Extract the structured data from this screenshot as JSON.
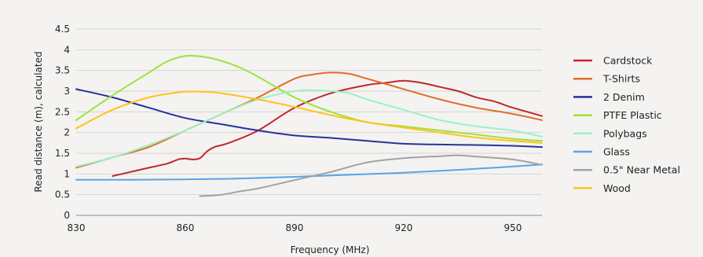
{
  "chart_data": {
    "type": "line",
    "title": "",
    "xlabel": "Frequency (MHz)",
    "ylabel": "Read distance (m), calculated",
    "xlim": [
      830,
      958
    ],
    "ylim": [
      0,
      4.5
    ],
    "x_ticks": [
      "830",
      "860",
      "890",
      "920",
      "950"
    ],
    "y_ticks": [
      "0",
      "0.5",
      "1",
      "1.5",
      "2",
      "2.5",
      "3",
      "3.5",
      "4",
      "4.5"
    ],
    "grid": true,
    "legend": "right",
    "series": [
      {
        "name": "Cardstock",
        "color": "#c0272d",
        "x": [
          840,
          845,
          850,
          855,
          858,
          860,
          862,
          864,
          866,
          868,
          872,
          880,
          890,
          900,
          910,
          915,
          920,
          925,
          930,
          935,
          940,
          945,
          950,
          958
        ],
        "y": [
          0.95,
          1.05,
          1.15,
          1.25,
          1.35,
          1.37,
          1.35,
          1.38,
          1.55,
          1.65,
          1.75,
          2.05,
          2.6,
          2.95,
          3.15,
          3.2,
          3.25,
          3.2,
          3.1,
          3.0,
          2.85,
          2.75,
          2.6,
          2.4
        ]
      },
      {
        "name": "T-Shirts",
        "color": "#e06c2a",
        "x": [
          830,
          840,
          850,
          860,
          870,
          880,
          890,
          895,
          900,
          905,
          910,
          920,
          930,
          940,
          950,
          958
        ],
        "y": [
          1.15,
          1.4,
          1.65,
          2.05,
          2.45,
          2.85,
          3.3,
          3.4,
          3.45,
          3.42,
          3.3,
          3.05,
          2.8,
          2.6,
          2.45,
          2.3
        ]
      },
      {
        "name": "2 Denim",
        "color": "#26339c",
        "x": [
          830,
          840,
          850,
          860,
          870,
          880,
          890,
          900,
          910,
          920,
          930,
          940,
          950,
          958
        ],
        "y": [
          3.05,
          2.85,
          2.6,
          2.35,
          2.2,
          2.05,
          1.93,
          1.87,
          1.8,
          1.73,
          1.71,
          1.7,
          1.68,
          1.65
        ]
      },
      {
        "name": "PTFE Plastic",
        "color": "#9ee23a",
        "x": [
          830,
          840,
          850,
          855,
          860,
          865,
          870,
          875,
          880,
          890,
          900,
          910,
          920,
          930,
          940,
          950,
          958
        ],
        "y": [
          2.3,
          2.9,
          3.45,
          3.72,
          3.85,
          3.83,
          3.73,
          3.57,
          3.35,
          2.85,
          2.5,
          2.25,
          2.15,
          2.05,
          1.95,
          1.85,
          1.8
        ]
      },
      {
        "name": "Polybags",
        "color": "#9df0c6",
        "x": [
          830,
          840,
          850,
          860,
          870,
          880,
          890,
          895,
          900,
          905,
          910,
          920,
          930,
          940,
          950,
          958
        ],
        "y": [
          1.18,
          1.4,
          1.7,
          2.05,
          2.45,
          2.8,
          3.0,
          3.02,
          3.0,
          2.95,
          2.8,
          2.55,
          2.3,
          2.15,
          2.05,
          1.9
        ]
      },
      {
        "name": "Glass",
        "color": "#5aa4e4",
        "x": [
          830,
          845,
          860,
          875,
          890,
          905,
          920,
          935,
          950,
          958
        ],
        "y": [
          0.86,
          0.86,
          0.87,
          0.89,
          0.93,
          0.98,
          1.03,
          1.1,
          1.18,
          1.23
        ]
      },
      {
        "name": "0.5\" Near Metal",
        "color": "#a3a3a3",
        "x": [
          864,
          870,
          875,
          880,
          890,
          900,
          910,
          920,
          930,
          935,
          940,
          950,
          958
        ],
        "y": [
          0.46,
          0.5,
          0.58,
          0.65,
          0.85,
          1.05,
          1.28,
          1.38,
          1.43,
          1.45,
          1.42,
          1.35,
          1.22
        ]
      },
      {
        "name": "Wood",
        "color": "#ffc31c",
        "x": [
          830,
          840,
          850,
          858,
          862,
          866,
          870,
          880,
          890,
          900,
          910,
          920,
          930,
          940,
          950,
          958
        ],
        "y": [
          2.1,
          2.55,
          2.85,
          2.97,
          2.99,
          2.98,
          2.95,
          2.8,
          2.62,
          2.42,
          2.25,
          2.12,
          2.0,
          1.88,
          1.8,
          1.75
        ]
      }
    ]
  }
}
